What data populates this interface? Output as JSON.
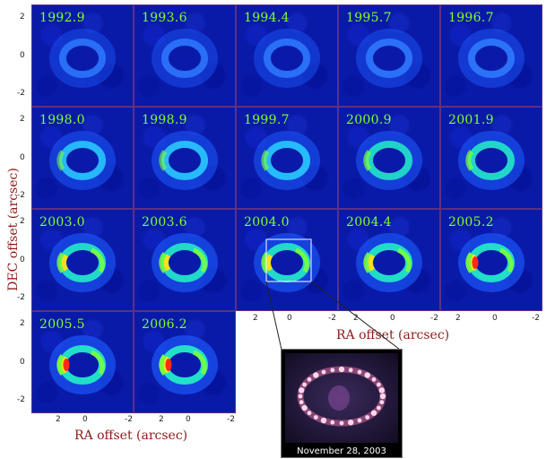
{
  "panels": [
    {
      "year": "1992.9",
      "i": 0.25
    },
    {
      "year": "1993.6",
      "i": 0.3
    },
    {
      "year": "1994.4",
      "i": 0.32
    },
    {
      "year": "1995.7",
      "i": 0.38
    },
    {
      "year": "1996.7",
      "i": 0.45
    },
    {
      "year": "1998.0",
      "i": 0.55
    },
    {
      "year": "1998.9",
      "i": 0.6
    },
    {
      "year": "1999.7",
      "i": 0.63
    },
    {
      "year": "2000.9",
      "i": 0.7
    },
    {
      "year": "2001.9",
      "i": 0.75
    },
    {
      "year": "2003.0",
      "i": 0.82
    },
    {
      "year": "2003.6",
      "i": 0.85
    },
    {
      "year": "2004.0",
      "i": 0.86
    },
    {
      "year": "2004.4",
      "i": 0.87
    },
    {
      "year": "2005.2",
      "i": 0.93
    },
    {
      "year": "2005.5",
      "i": 0.95
    },
    {
      "year": "2006.2",
      "i": 1.0
    }
  ],
  "y_ticks": [
    "2",
    "0",
    "-2"
  ],
  "x_ticks": [
    "2",
    "0",
    "-2"
  ],
  "axes": {
    "y_title": "DEC offset (arcsec)",
    "x_title": "RA offset (arcsec)"
  },
  "inset": {
    "caption": "November 28, 2003"
  },
  "colors": {
    "background": "#0a1aa8",
    "year_label": "#7dff2e",
    "axis_title": "#8b1a1a"
  }
}
